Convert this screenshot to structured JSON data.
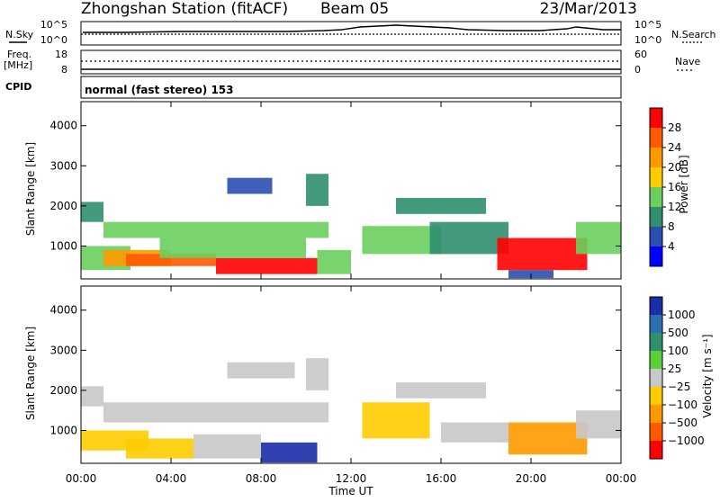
{
  "header": {
    "station": "Zhongshan Station (fitACF)",
    "beam": "Beam 05",
    "date": "23/Mar/2013"
  },
  "summary": {
    "nsky_label": "N.Sky",
    "nsky_ticks": [
      "10^5",
      "10^0"
    ],
    "nsearch_label": "N.Search",
    "nsearch_ticks": [
      "10^5",
      "10^0"
    ],
    "freq_label": "Freq.",
    "freq_unit": "[MHz]",
    "freq_ticks": [
      "18",
      "8"
    ],
    "nave_label": "Nave",
    "nave_ticks": [
      "60",
      "0"
    ],
    "cpid_label": "CPID",
    "cpid_text": "normal (fast stereo) 153"
  },
  "axes": {
    "y_label": "Slant Range [km]",
    "y_ticks": [
      "4000",
      "3000",
      "2000",
      "1000"
    ],
    "x_label": "Time UT",
    "x_ticks": [
      "00:00",
      "04:00",
      "08:00",
      "12:00",
      "16:00",
      "20:00",
      "00:00"
    ]
  },
  "colorbars": {
    "power": {
      "label": "Power [dB]",
      "ticks": [
        "28",
        "24",
        "20",
        "16",
        "12",
        "8",
        "4"
      ],
      "colors": [
        "#ff0000",
        "#ff5a00",
        "#ff9900",
        "#ffcc00",
        "#6bcf5e",
        "#2f8f6f",
        "#2b4fb0",
        "#0000ff"
      ]
    },
    "velocity": {
      "label": "Velocity [m s⁻¹]",
      "ticks": [
        "1000",
        "500",
        "100",
        "25",
        "−25",
        "−100",
        "−500",
        "−1000"
      ],
      "colors": [
        "#1a2ea8",
        "#2b6fb0",
        "#2f8f6f",
        "#5ccf3a",
        "#c8c8c8",
        "#ffcc00",
        "#ff9900",
        "#ff5a00",
        "#ff0000"
      ]
    }
  },
  "chart_data": [
    {
      "type": "heatmap",
      "title": "Power",
      "xlabel": "Time UT",
      "ylabel": "Slant Range [km]",
      "xlim": [
        0,
        24
      ],
      "ylim": [
        180,
        4600
      ],
      "colorbar": {
        "label": "Power [dB]",
        "range": [
          0,
          30
        ]
      },
      "patches": [
        {
          "x": [
            0.0,
            2.2
          ],
          "y": [
            400,
            1000
          ],
          "value": 14
        },
        {
          "x": [
            0.0,
            1.0
          ],
          "y": [
            1600,
            2100
          ],
          "value": 8
        },
        {
          "x": [
            1.0,
            4.0
          ],
          "y": [
            500,
            900
          ],
          "value": 20
        },
        {
          "x": [
            1.0,
            11.0
          ],
          "y": [
            1200,
            1600
          ],
          "value": 14
        },
        {
          "x": [
            2.0,
            6.0
          ],
          "y": [
            500,
            800
          ],
          "value": 26
        },
        {
          "x": [
            6.0,
            10.5
          ],
          "y": [
            300,
            700
          ],
          "value": 28
        },
        {
          "x": [
            3.5,
            10.0
          ],
          "y": [
            700,
            1200
          ],
          "value": 12
        },
        {
          "x": [
            6.5,
            8.5
          ],
          "y": [
            2300,
            2700
          ],
          "value": 6
        },
        {
          "x": [
            10.0,
            11.0
          ],
          "y": [
            2000,
            2800
          ],
          "value": 8
        },
        {
          "x": [
            10.5,
            12.0
          ],
          "y": [
            300,
            900
          ],
          "value": 12
        },
        {
          "x": [
            12.5,
            16.0
          ],
          "y": [
            800,
            1500
          ],
          "value": 14
        },
        {
          "x": [
            14.0,
            18.0
          ],
          "y": [
            1800,
            2200
          ],
          "value": 8
        },
        {
          "x": [
            15.5,
            19.0
          ],
          "y": [
            800,
            1600
          ],
          "value": 10
        },
        {
          "x": [
            18.5,
            22.5
          ],
          "y": [
            400,
            1200
          ],
          "value": 28
        },
        {
          "x": [
            19.0,
            21.0
          ],
          "y": [
            200,
            400
          ],
          "value": 4
        },
        {
          "x": [
            22.0,
            24.0
          ],
          "y": [
            800,
            1600
          ],
          "value": 14
        }
      ]
    },
    {
      "type": "heatmap",
      "title": "Velocity",
      "xlabel": "Time UT",
      "ylabel": "Slant Range [km]",
      "xlim": [
        0,
        24
      ],
      "ylim": [
        180,
        4600
      ],
      "colorbar": {
        "label": "Velocity [m s⁻¹]",
        "range": [
          -1000,
          1000
        ]
      },
      "patches": [
        {
          "x": [
            0.0,
            3.0
          ],
          "y": [
            500,
            1000
          ],
          "value": -200
        },
        {
          "x": [
            0.0,
            1.0
          ],
          "y": [
            1600,
            2100
          ],
          "value": 0
        },
        {
          "x": [
            1.0,
            11.0
          ],
          "y": [
            1200,
            1700
          ],
          "value": 0
        },
        {
          "x": [
            2.0,
            5.0
          ],
          "y": [
            300,
            800
          ],
          "value": -300
        },
        {
          "x": [
            5.0,
            8.0
          ],
          "y": [
            300,
            900
          ],
          "value": 80
        },
        {
          "x": [
            8.0,
            10.5
          ],
          "y": [
            200,
            700
          ],
          "value": 1000
        },
        {
          "x": [
            6.5,
            9.5
          ],
          "y": [
            2300,
            2700
          ],
          "value": -60
        },
        {
          "x": [
            10.0,
            11.0
          ],
          "y": [
            2000,
            2800
          ],
          "value": 10
        },
        {
          "x": [
            12.5,
            15.5
          ],
          "y": [
            800,
            1700
          ],
          "value": -300
        },
        {
          "x": [
            14.0,
            18.0
          ],
          "y": [
            1800,
            2200
          ],
          "value": 20
        },
        {
          "x": [
            16.0,
            19.0
          ],
          "y": [
            700,
            1200
          ],
          "value": 60
        },
        {
          "x": [
            19.0,
            22.5
          ],
          "y": [
            400,
            1200
          ],
          "value": -400
        },
        {
          "x": [
            22.0,
            24.0
          ],
          "y": [
            800,
            1500
          ],
          "value": 80
        }
      ]
    }
  ]
}
